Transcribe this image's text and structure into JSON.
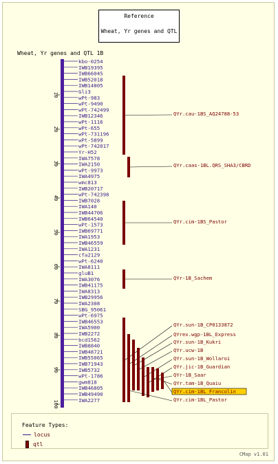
{
  "title_box": {
    "line1": "Reference",
    "line2": "Wheat, Yr genes and QTL"
  },
  "map_label": "Wheat, Yr genes and QTL 1B",
  "axis_ticks": [
    10,
    20,
    30,
    40,
    50,
    60,
    70,
    80,
    90,
    100
  ],
  "markers": [
    "kbo-0254",
    "IWB19395",
    "IWB66045",
    "IWB52018",
    "IWB14805",
    "Gli3",
    "wPt-983",
    "wPt-9490",
    "wPt-742499",
    "IWB12346",
    "wPt-1116",
    "wPt-655",
    "wPt-731196",
    "wPt-5899",
    "wPt-742017",
    "Yr-H52",
    "IWA7578",
    "IWA2150",
    "wPt-9973",
    "IWA4975",
    "wmc813",
    "IWB20717",
    "wPt-742398",
    "IWB7028",
    "IWA140",
    "IWB44706",
    "IWB64540",
    "wPt-1573",
    "IWB69771",
    "IWA1953",
    "IWB46559",
    "IWA1231",
    "cfa2129",
    "wPt-6240",
    "IWA8111",
    "gluB1",
    "IWA3076",
    "IWB41175",
    "IWA8313",
    "IWB29956",
    "IWA2308",
    "SBG_95061",
    "wPt-6975",
    "IWB46553",
    "IWA5900",
    "IWB2272",
    "bcd1562",
    "IWB8840",
    "IWB48721",
    "IWB55065",
    "IWB71943",
    "IWB5732",
    "wPt-1786",
    "gwm818",
    "IWB46805",
    "IWB49490",
    "IWA2277"
  ],
  "qtls": [
    {
      "label": "QYr.cau-1BS_AQ24788-53",
      "highlight": false
    },
    {
      "label": "QYr.caas-1BL.QRS_SHA3/CBRD",
      "highlight": false
    },
    {
      "label": "QYr.cim-1BS_Pastor",
      "highlight": false
    },
    {
      "label": "QYr-1B_Sachem",
      "highlight": false
    },
    {
      "label": "QYr.sun-1B_CP0133872",
      "highlight": false
    },
    {
      "label": "QYrex.wgp-1BL_Express",
      "highlight": false
    },
    {
      "label": "QYr.sun-1B_Kukri",
      "highlight": false
    },
    {
      "label": "QYr.ucw-1B",
      "highlight": false
    },
    {
      "label": "QYr.sun-1B_Wollaroi",
      "highlight": false
    },
    {
      "label": "QYr.jic-1B_Guardian",
      "highlight": false
    },
    {
      "label": "QYr-1B_Saar",
      "highlight": false
    },
    {
      "label": "QYr.tam-1B_Quaiu",
      "highlight": false
    },
    {
      "label": "QYr.cim-1BL_Francolin",
      "highlight": true
    },
    {
      "label": "QYr.cim-1BL_Pastor",
      "highlight": false
    }
  ],
  "legend": {
    "header": "Feature Types:",
    "locus_label": "locus",
    "qtl_label": "qtl"
  },
  "version": "CMap v1.01",
  "colors": {
    "chromosome": "#4b1e9e",
    "marker_text": "#3a1a8a",
    "qtl_fill": "#7a0000",
    "qtl_text": "#7a0000",
    "highlight_bg": "#ffd000"
  }
}
